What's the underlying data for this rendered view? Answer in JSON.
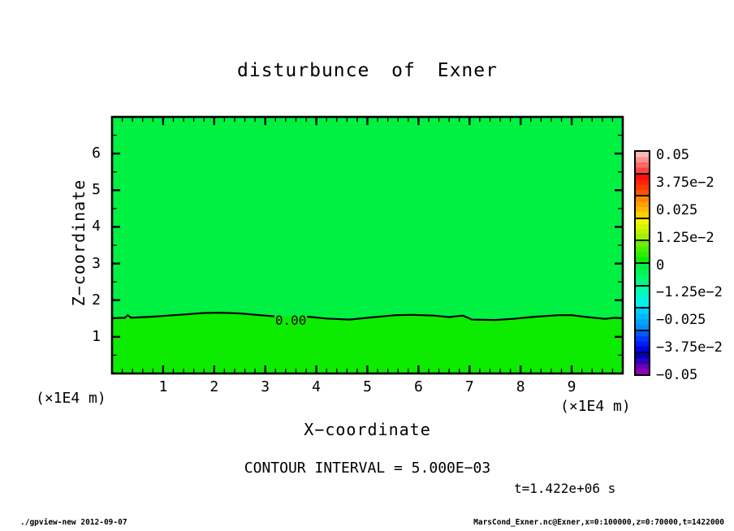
{
  "title": "disturbunce of Exner",
  "axes": {
    "x_label": "X−coordinate",
    "y_label": "Z−coordinate",
    "x_unit": "(×1E4 m)",
    "y_unit": "(×1E4 m)"
  },
  "annotations": {
    "contour_interval": "CONTOUR INTERVAL = 5.000E−03",
    "time_stamp": "t=1.422e+06 s"
  },
  "footer": {
    "left": "./gpview-new  2012-09-07",
    "right": "MarsCond_Exner.nc@Exner,x=0:100000,z=0:70000,t=1422000"
  },
  "chart_data": {
    "type": "heatmap",
    "title": "disturbunce of Exner",
    "xlabel": "X−coordinate",
    "ylabel": "Z−coordinate",
    "x_unit": "×1E4 m",
    "y_unit": "×1E4 m",
    "xlim": [
      0,
      10
    ],
    "ylim": [
      0,
      7
    ],
    "x_ticks": [
      1,
      2,
      3,
      4,
      5,
      6,
      7,
      8,
      9
    ],
    "y_ticks": [
      1,
      2,
      3,
      4,
      5,
      6
    ],
    "x_minor_step": 0.2,
    "y_minor_step": 0.5,
    "contour_interval": 0.005,
    "time_seconds": "1.422e+06",
    "field": {
      "description": "Exner-function disturbance: slightly positive below the zero contour (z≈1.55e4 m), slightly negative above it",
      "upper_color": "#00f141",
      "lower_color": "#0deb00"
    },
    "zero_contour": {
      "label": "0.00",
      "label_position": [
        3.5,
        1.46
      ],
      "points_left": [
        [
          0,
          1.51
        ],
        [
          0.25,
          1.52
        ],
        [
          0.31,
          1.59
        ],
        [
          0.37,
          1.52
        ],
        [
          0.8,
          1.55
        ],
        [
          1.3,
          1.6
        ],
        [
          1.8,
          1.65
        ],
        [
          2.1,
          1.66
        ],
        [
          2.5,
          1.64
        ],
        [
          2.9,
          1.59
        ],
        [
          3.18,
          1.56
        ]
      ],
      "points_right": [
        [
          3.82,
          1.55
        ],
        [
          4.2,
          1.5
        ],
        [
          4.65,
          1.47
        ],
        [
          5.0,
          1.52
        ],
        [
          5.55,
          1.59
        ],
        [
          5.9,
          1.6
        ],
        [
          6.3,
          1.58
        ],
        [
          6.6,
          1.54
        ],
        [
          6.87,
          1.58
        ],
        [
          7.05,
          1.47
        ],
        [
          7.5,
          1.46
        ],
        [
          7.85,
          1.49
        ],
        [
          8.3,
          1.55
        ],
        [
          8.75,
          1.59
        ],
        [
          9.0,
          1.59
        ],
        [
          9.3,
          1.54
        ],
        [
          9.65,
          1.49
        ],
        [
          9.85,
          1.52
        ],
        [
          10,
          1.51
        ]
      ]
    },
    "colorbar": {
      "range": [
        -0.05,
        0.05
      ],
      "labels": [
        "0.05",
        "3.75e−2",
        "0.025",
        "1.25e−2",
        "0",
        "−1.25e−2",
        "−0.025",
        "−3.75e−2",
        "−0.05"
      ],
      "blocks": [
        {
          "from": "#ffb6b6",
          "to": "#ff4343"
        },
        {
          "from": "#ff0d0d",
          "to": "#ff5200"
        },
        {
          "from": "#ff8800",
          "to": "#ffd000"
        },
        {
          "from": "#f4f400",
          "to": "#a0f000"
        },
        {
          "from": "#6cf000",
          "to": "#0deb00"
        },
        {
          "from": "#00f141",
          "to": "#00fa82"
        },
        {
          "from": "#00ffae",
          "to": "#00f0f0"
        },
        {
          "from": "#00cdff",
          "to": "#0091ff"
        },
        {
          "from": "#005aff",
          "to": "#0000eb"
        },
        {
          "from": "#0000c3",
          "to": "#9000b4"
        }
      ]
    }
  }
}
